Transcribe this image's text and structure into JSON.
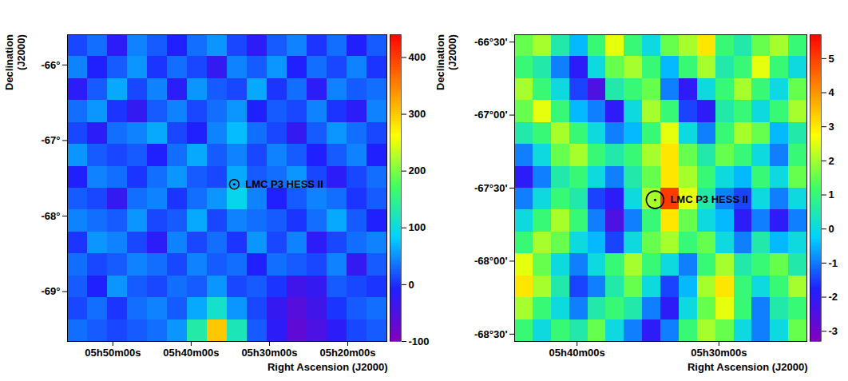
{
  "chart_data": [
    {
      "type": "heatmap",
      "xlabel": "Right Ascension (J2000)",
      "ylabel": "Declination (J2000)",
      "xlim": [
        355.8,
        315.0
      ],
      "xticks": [
        {
          "value": 350,
          "label": "05h50m00s"
        },
        {
          "value": 340,
          "label": "05h40m00s"
        },
        {
          "value": 330,
          "label": "05h30m00s"
        },
        {
          "value": 320,
          "label": "05h20m00s"
        }
      ],
      "ylim": [
        -69.66,
        -65.6
      ],
      "yticks": [
        {
          "value": -66,
          "label": "-66°"
        },
        {
          "value": -67,
          "label": "-67°"
        },
        {
          "value": -68,
          "label": "-68°"
        },
        {
          "value": -69,
          "label": "-69°"
        }
      ],
      "marker": "circle",
      "annotations": [
        {
          "text": "LMC P3 HESS II",
          "x": 334.5,
          "y": -67.58
        }
      ],
      "zlim": [
        -100,
        440
      ],
      "zticks": [
        -100,
        0,
        100,
        200,
        300,
        400
      ],
      "z": [
        [
          10,
          30,
          -20,
          40,
          20,
          -10,
          30,
          50,
          10,
          -20,
          20,
          40,
          0,
          30,
          -10,
          20
        ],
        [
          40,
          -10,
          20,
          50,
          0,
          30,
          10,
          -30,
          40,
          20,
          50,
          -10,
          30,
          10,
          40,
          0
        ],
        [
          -20,
          20,
          60,
          10,
          40,
          -20,
          50,
          20,
          10,
          60,
          0,
          30,
          -20,
          40,
          20,
          30
        ],
        [
          30,
          50,
          0,
          -30,
          20,
          40,
          10,
          30,
          50,
          -10,
          20,
          10,
          40,
          0,
          -20,
          40
        ],
        [
          10,
          -20,
          30,
          40,
          60,
          10,
          -10,
          40,
          70,
          30,
          10,
          -30,
          20,
          50,
          30,
          10
        ],
        [
          50,
          20,
          10,
          20,
          -10,
          30,
          60,
          20,
          40,
          10,
          40,
          20,
          -10,
          20,
          40,
          -10
        ],
        [
          -10,
          40,
          30,
          0,
          30,
          50,
          20,
          10,
          60,
          20,
          30,
          50,
          10,
          -20,
          10,
          30
        ],
        [
          20,
          10,
          -30,
          30,
          40,
          0,
          30,
          50,
          90,
          40,
          -10,
          20,
          40,
          30,
          0,
          20
        ],
        [
          40,
          30,
          20,
          50,
          10,
          20,
          60,
          10,
          40,
          30,
          20,
          0,
          30,
          60,
          20,
          -10
        ],
        [
          0,
          50,
          40,
          10,
          -20,
          40,
          10,
          30,
          0,
          50,
          10,
          40,
          -20,
          10,
          30,
          40
        ],
        [
          30,
          10,
          20,
          40,
          30,
          10,
          40,
          20,
          30,
          -10,
          30,
          20,
          10,
          40,
          -30,
          20
        ],
        [
          20,
          -10,
          50,
          20,
          10,
          30,
          20,
          50,
          10,
          20,
          0,
          -40,
          -30,
          20,
          10,
          0
        ],
        [
          10,
          30,
          0,
          30,
          40,
          20,
          60,
          110,
          50,
          10,
          -30,
          -60,
          -40,
          0,
          20,
          30
        ],
        [
          30,
          20,
          10,
          20,
          30,
          50,
          130,
          300,
          120,
          20,
          -20,
          -70,
          -50,
          -20,
          10,
          20
        ]
      ]
    },
    {
      "type": "heatmap",
      "xlabel": "Right Ascension (J2000)",
      "ylabel": "Declination (J2000)",
      "xlim": [
        344.4,
        323.8
      ],
      "xticks": [
        {
          "value": 340,
          "label": "05h40m00s"
        },
        {
          "value": 330,
          "label": "05h30m00s"
        }
      ],
      "ylim": [
        -68.55,
        -66.45
      ],
      "yticks": [
        {
          "value": -66.5,
          "label": "-66°30'"
        },
        {
          "value": -67,
          "label": "-67°00'"
        },
        {
          "value": -67.5,
          "label": "-67°30'"
        },
        {
          "value": -68,
          "label": "-68°00'"
        },
        {
          "value": -68.5,
          "label": "-68°30'"
        }
      ],
      "marker": "circle",
      "annotations": [
        {
          "text": "LMC P3 HESS II",
          "x": 334.5,
          "y": -67.58
        }
      ],
      "zlim": [
        -3.3,
        5.7
      ],
      "zticks": [
        -3,
        -2,
        -1,
        0,
        1,
        2,
        3,
        4,
        5
      ],
      "z": [
        [
          1.5,
          2,
          0.5,
          -0.5,
          1,
          2.5,
          1,
          0,
          1.5,
          2,
          3,
          1,
          0.5,
          1.5,
          2,
          1
        ],
        [
          1,
          0.5,
          -1,
          -2,
          0,
          1.5,
          2,
          1,
          -0.5,
          1,
          2,
          0.5,
          1,
          2.5,
          1,
          0
        ],
        [
          2,
          1,
          0,
          -1.5,
          -2.5,
          0.5,
          1,
          1.5,
          -1,
          -2,
          0,
          1,
          2,
          1,
          0,
          1.5
        ],
        [
          1.5,
          2.5,
          1,
          -0.5,
          -1,
          -2,
          0,
          2,
          1,
          -1.5,
          -2,
          0.5,
          1,
          0,
          1,
          2
        ],
        [
          0.5,
          1,
          2,
          1,
          0,
          -1,
          -0.5,
          1,
          2.5,
          0,
          -1,
          1,
          2,
          1.5,
          -0.5,
          0.5
        ],
        [
          -1,
          0,
          1.5,
          2,
          1,
          0.5,
          1,
          2,
          3,
          1.5,
          0.5,
          1.5,
          1,
          0,
          -1,
          1
        ],
        [
          -2,
          -1,
          0.5,
          1,
          0,
          -1,
          0.5,
          1.5,
          3,
          2,
          1,
          0,
          -0.5,
          1,
          0,
          1.5
        ],
        [
          -1,
          0,
          1,
          0.5,
          -1.5,
          -2,
          0,
          2,
          5,
          2.5,
          0.5,
          -1,
          -1.5,
          0,
          -1,
          0
        ],
        [
          0,
          1,
          2,
          1,
          -1,
          -2.5,
          -1,
          1,
          3,
          1.5,
          0,
          -0.5,
          -2,
          -1,
          -2,
          -1
        ],
        [
          1,
          2,
          1.5,
          0,
          -0.5,
          -1.5,
          0,
          1.5,
          2,
          1,
          1.5,
          0,
          -1,
          0.5,
          -0.5,
          0
        ],
        [
          2.5,
          1.5,
          0,
          -1,
          0,
          1,
          2,
          1,
          0,
          -1,
          1,
          2,
          0.5,
          1,
          1.5,
          0.5
        ],
        [
          3,
          2,
          0.5,
          -1.5,
          -1,
          0.5,
          1.5,
          0,
          -1.5,
          -0.5,
          2,
          3,
          1,
          0,
          1,
          2
        ],
        [
          2,
          1,
          0,
          -1,
          0.5,
          1,
          0.5,
          -1,
          -2,
          0,
          1.5,
          2.5,
          1,
          -1,
          0.5,
          1
        ],
        [
          1,
          0,
          1,
          0.5,
          1.5,
          0,
          -1,
          -2,
          -1,
          1,
          2,
          1.5,
          0,
          -1,
          0,
          1.5
        ]
      ]
    }
  ]
}
